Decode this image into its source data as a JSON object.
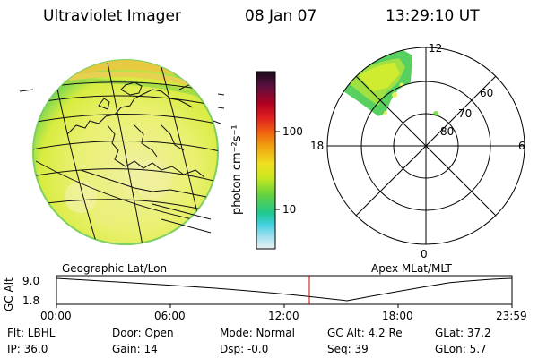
{
  "header": {
    "instrument": "Ultraviolet Imager",
    "date": "08 Jan 07",
    "time": "13:29:10 UT"
  },
  "colorbar": {
    "unit_label": "photon cm⁻²s⁻¹",
    "ticks": [
      "100",
      "10"
    ],
    "scale": "log",
    "colors_top_to_bottom": [
      "#1a0a1a",
      "#5a1040",
      "#b00020",
      "#e02020",
      "#f06010",
      "#f0a010",
      "#f0e020",
      "#c8e820",
      "#60d040",
      "#20c890",
      "#40d0e0",
      "#a0e0f0",
      "#e8f0f0"
    ]
  },
  "polar_plot": {
    "mlt_labels": [
      "12",
      "18",
      "6",
      "0"
    ],
    "mlat_labels": [
      "60",
      "70",
      "80"
    ]
  },
  "timeline": {
    "left_title": "Geographic Lat/Lon",
    "right_title": "Apex MLat/MLT",
    "y_axis_label": "GC Alt",
    "y_ticks": [
      "9.0",
      "1.8"
    ],
    "x_ticks": [
      "00:00",
      "06:00",
      "12:00",
      "18:00",
      "23:59"
    ],
    "marker_color": "#d00000"
  },
  "info": {
    "filter": "Flt: LBHL",
    "door": "Door: Open",
    "mode": "Mode: Normal",
    "gc_alt": "GC Alt: 4.2 Re",
    "glat": "GLat:  37.2",
    "ip": "IP: 36.0",
    "gain": "Gain: 14",
    "dsp": "Dsp:   -0.0",
    "seq": "Seq: 39",
    "glon": "GLon:   5.7"
  }
}
